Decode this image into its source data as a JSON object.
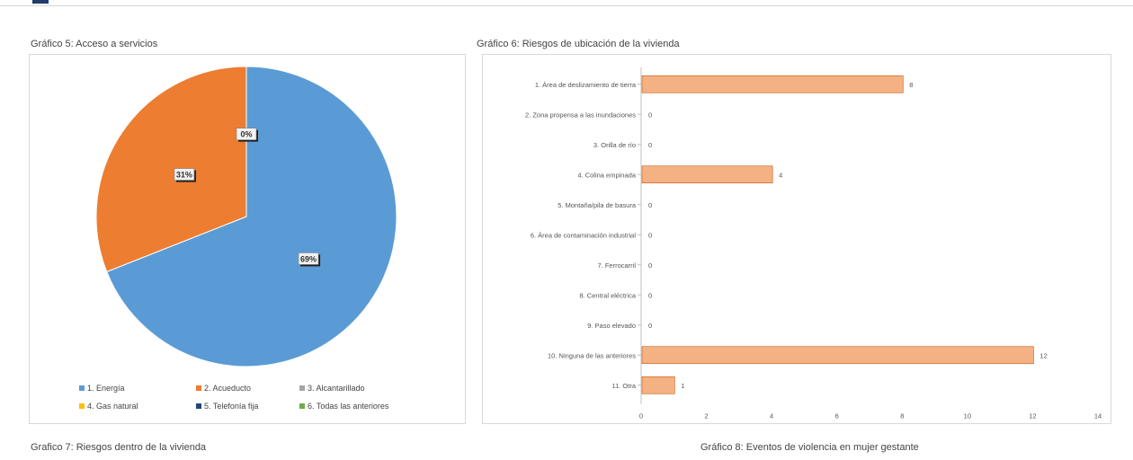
{
  "captions": {
    "chart5": "Gráfico 5: Acceso a servicios",
    "chart6": "Gráfico 6: Riesgos de ubicación de la vivienda",
    "chart7": "Grafico 7: Riesgos dentro de la vivienda",
    "chart8": "Gráfico 8: Eventos de violencia en mujer gestante"
  },
  "chart_data": [
    {
      "type": "pie",
      "title": "Gráfico 5: Acceso a servicios",
      "slices": [
        {
          "label": "1. Energía",
          "value": 69,
          "data_label": "69%",
          "color": "#5b9bd5"
        },
        {
          "label": "2. Acueducto",
          "value": 31,
          "data_label": "31%",
          "color": "#ed7d31"
        },
        {
          "label": "3. Alcantarillado",
          "value": 0,
          "data_label": "0%",
          "color": "#a5a5a5"
        },
        {
          "label": "4. Gas natural",
          "value": 0,
          "data_label": "",
          "color": "#ffc000"
        },
        {
          "label": "5. Telefonía fija",
          "value": 0,
          "data_label": "",
          "color": "#264478"
        },
        {
          "label": "6. Todas las anteriores",
          "value": 0,
          "data_label": "",
          "color": "#70ad47"
        }
      ],
      "legend_position": "bottom"
    },
    {
      "type": "bar",
      "orientation": "horizontal",
      "title": "Gráfico 6: Riesgos de ubicación de la vivienda",
      "categories": [
        "1. Área de deslizamiento de tierra",
        "2. Zona propensa a las inundaciones",
        "3. Orilla de río",
        "4. Colina empinada",
        "5. Montaña/pila de basura",
        "6. Área de contaminación industrial",
        "7. Ferrocarril",
        "8. Central eléctrica",
        "9. Paso elevado",
        "10. Ninguna de las anteriores",
        "11. Otra"
      ],
      "values": [
        8,
        0,
        0,
        4,
        0,
        0,
        0,
        0,
        0,
        12,
        1
      ],
      "xlim": [
        0,
        14
      ],
      "xticks": [
        0,
        2,
        4,
        6,
        8,
        10,
        12,
        14
      ],
      "bar_color": "#f4b183",
      "bar_edge_color": "#c55a11",
      "grid": false
    }
  ]
}
